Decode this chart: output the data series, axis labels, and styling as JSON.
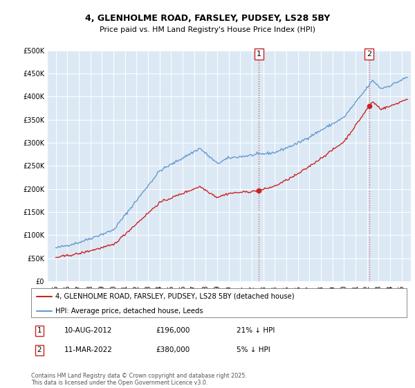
{
  "title1": "4, GLENHOLME ROAD, FARSLEY, PUDSEY, LS28 5BY",
  "title2": "Price paid vs. HM Land Registry's House Price Index (HPI)",
  "legend_label_red": "4, GLENHOLME ROAD, FARSLEY, PUDSEY, LS28 5BY (detached house)",
  "legend_label_blue": "HPI: Average price, detached house, Leeds",
  "annotation1_label": "1",
  "annotation1_date": "10-AUG-2012",
  "annotation1_price": "£196,000",
  "annotation1_hpi": "21% ↓ HPI",
  "annotation2_label": "2",
  "annotation2_date": "11-MAR-2022",
  "annotation2_price": "£380,000",
  "annotation2_hpi": "5% ↓ HPI",
  "footer": "Contains HM Land Registry data © Crown copyright and database right 2025.\nThis data is licensed under the Open Government Licence v3.0.",
  "fig_bg": "#ffffff",
  "plot_bg": "#dce9f5",
  "red_color": "#cc2222",
  "blue_color": "#6699cc",
  "vline_color": "#cc2222",
  "ylim": [
    0,
    500000
  ],
  "yticks": [
    0,
    50000,
    100000,
    150000,
    200000,
    250000,
    300000,
    350000,
    400000,
    450000,
    500000
  ],
  "sale1_x": 2012.62,
  "sale1_y": 196000,
  "sale2_x": 2022.19,
  "sale2_y": 380000,
  "xlim_left": 1994.3,
  "xlim_right": 2025.8
}
